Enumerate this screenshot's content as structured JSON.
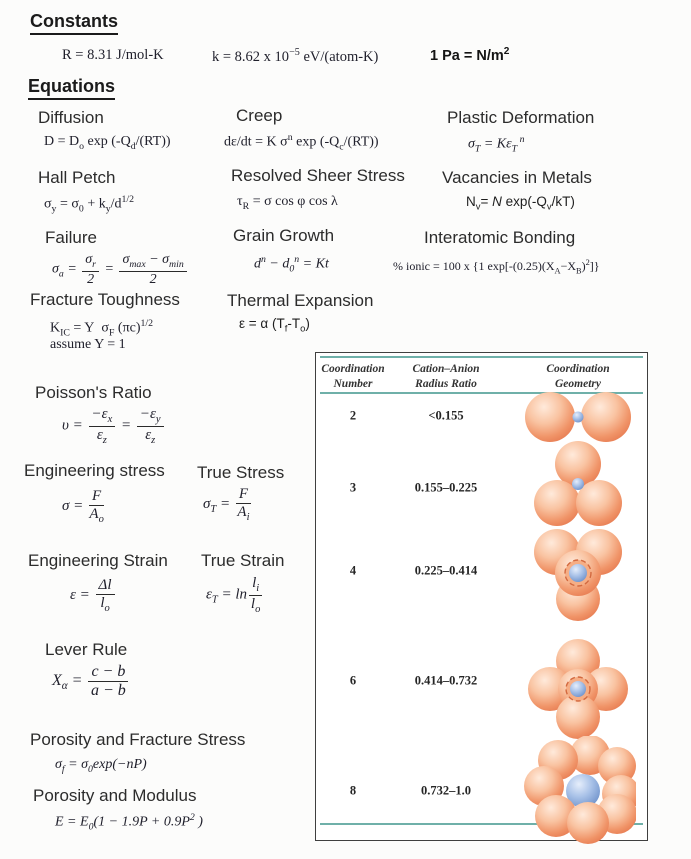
{
  "constants": {
    "title": "Constants",
    "r_value": "R = 8.31 J/mol-K",
    "k_value": "k = 8.62 x 10<sup>−5</sup> eV/(atom-K)",
    "pa_value": "1 Pa = N/m<sup>2</sup>"
  },
  "equations_title": "Equations",
  "equations": {
    "diffusion": {
      "title": "Diffusion",
      "formula": "D = D<sub>o</sub> exp (-Q<sub>d</sub>/(RT))"
    },
    "creep": {
      "title": "Creep",
      "formula": "dε/dt = K σ<sup>n</sup> exp (-Q<sub>c</sub>/(RT))"
    },
    "plastic": {
      "title": "Plastic Deformation",
      "formula": "σ<sub>T</sub> = Kε<sub>T</sub><sup> n</sup>"
    },
    "hall_petch": {
      "title": "Hall Petch",
      "formula": "σ<sub>y</sub> = σ<sub>0</sub> + k<sub>y</sub>/d<sup>1/2</sup>"
    },
    "resolved": {
      "title": "Resolved Sheer Stress",
      "formula": "τ<sub>R</sub> = σ cos φ cos λ"
    },
    "vacancies": {
      "title": "Vacancies in Metals",
      "formula": "N<sub>v</sub>= <i>N</i> exp(-Q<sub>v</sub>/kT)"
    },
    "failure": {
      "title": "Failure",
      "formula": "σ<sub>a</sub> = <span class='frac'><span>σ<sub>r</sub></span><span>2</span></span> = <span class='frac'><span>σ<sub>max</sub> − σ<sub>min</sub></span><span>2</span></span>"
    },
    "grain_growth": {
      "title": "Grain Growth",
      "formula": "d<sup>n</sup> − d<sub>0</sub><sup>n</sup> = Kt"
    },
    "interatomic": {
      "title": "Interatomic Bonding",
      "formula": "% ionic = 100 x {1 exp[-(0.25)(X<sub>A</sub>−X<sub>B</sub>)<sup>2</sup>]}"
    },
    "fracture_toughness": {
      "title": "Fracture Toughness",
      "formula": "K<sub>IC</sub> = Y&nbsp; σ<sub>F</sub> (πc)<sup>1/2</sup>",
      "note": "assume Y = 1"
    },
    "thermal": {
      "title": "Thermal Expansion",
      "formula": "ε  = α (T<sub>f</sub>-T<sub>o</sub>)"
    },
    "poisson": {
      "title": "Poisson's Ratio",
      "formula": "υ = <span class='frac'><span>−ε<sub>x</sub></span><span>ε<sub>z</sub></span></span> = <span class='frac'><span>−ε<sub>y</sub></span><span>ε<sub>z</sub></span></span>"
    },
    "eng_stress": {
      "title": "Engineering stress",
      "formula": "σ = <span class='frac'><span>F</span><span>A<sub>o</sub></span></span>"
    },
    "true_stress": {
      "title": "True Stress",
      "formula": "σ<sub>T</sub> = <span class='frac'><span>F</span><span>A<sub>i</sub></span></span>"
    },
    "eng_strain": {
      "title": "Engineering Strain",
      "formula": "ε = <span class='frac'><span>Δl</span><span>l<sub>o</sub></span></span>"
    },
    "true_strain": {
      "title": "True Strain",
      "formula": "ε<sub>T</sub> = ln<span class='frac'><span>l<sub>i</sub></span><span>l<sub>o</sub></span></span>"
    },
    "lever": {
      "title": "Lever Rule",
      "formula": "X<sub>α</sub> = <span class='frac'><span>c − b</span><span>a − b</span></span>"
    },
    "porosity_fracture": {
      "title": "Porosity and Fracture Stress",
      "formula": "σ<sub>f</sub> = σ<sub>0</sub>exp(−nP)"
    },
    "porosity_modulus": {
      "title": "Porosity and Modulus",
      "formula": "E = E<sub>0</sub>(1 − 1.9P + 0.9P<sup>2</sup> )"
    }
  },
  "table": {
    "columns": [
      {
        "line1": "Coordination",
        "line2": "Number"
      },
      {
        "line1": "Cation–Anion",
        "line2": "Radius Ratio"
      },
      {
        "line1": "Coordination",
        "line2": "Geometry"
      }
    ],
    "rows": [
      {
        "number": "2",
        "ratio": "<0.155",
        "geometry_icon": "linear-two-anions"
      },
      {
        "number": "3",
        "ratio": "0.155–0.225",
        "geometry_icon": "triangular-three-anions"
      },
      {
        "number": "4",
        "ratio": "0.225–0.414",
        "geometry_icon": "tetrahedral-four-anions"
      },
      {
        "number": "6",
        "ratio": "0.414–0.732",
        "geometry_icon": "octahedral-six-anions"
      },
      {
        "number": "8",
        "ratio": "0.732–1.0",
        "geometry_icon": "cubic-eight-anions"
      }
    ],
    "colors": {
      "rule_teal": "#6fb0a9",
      "anion_sphere": "#f09468",
      "cation_sphere": "#7b9ed3",
      "border": "#3f3f3f"
    }
  }
}
